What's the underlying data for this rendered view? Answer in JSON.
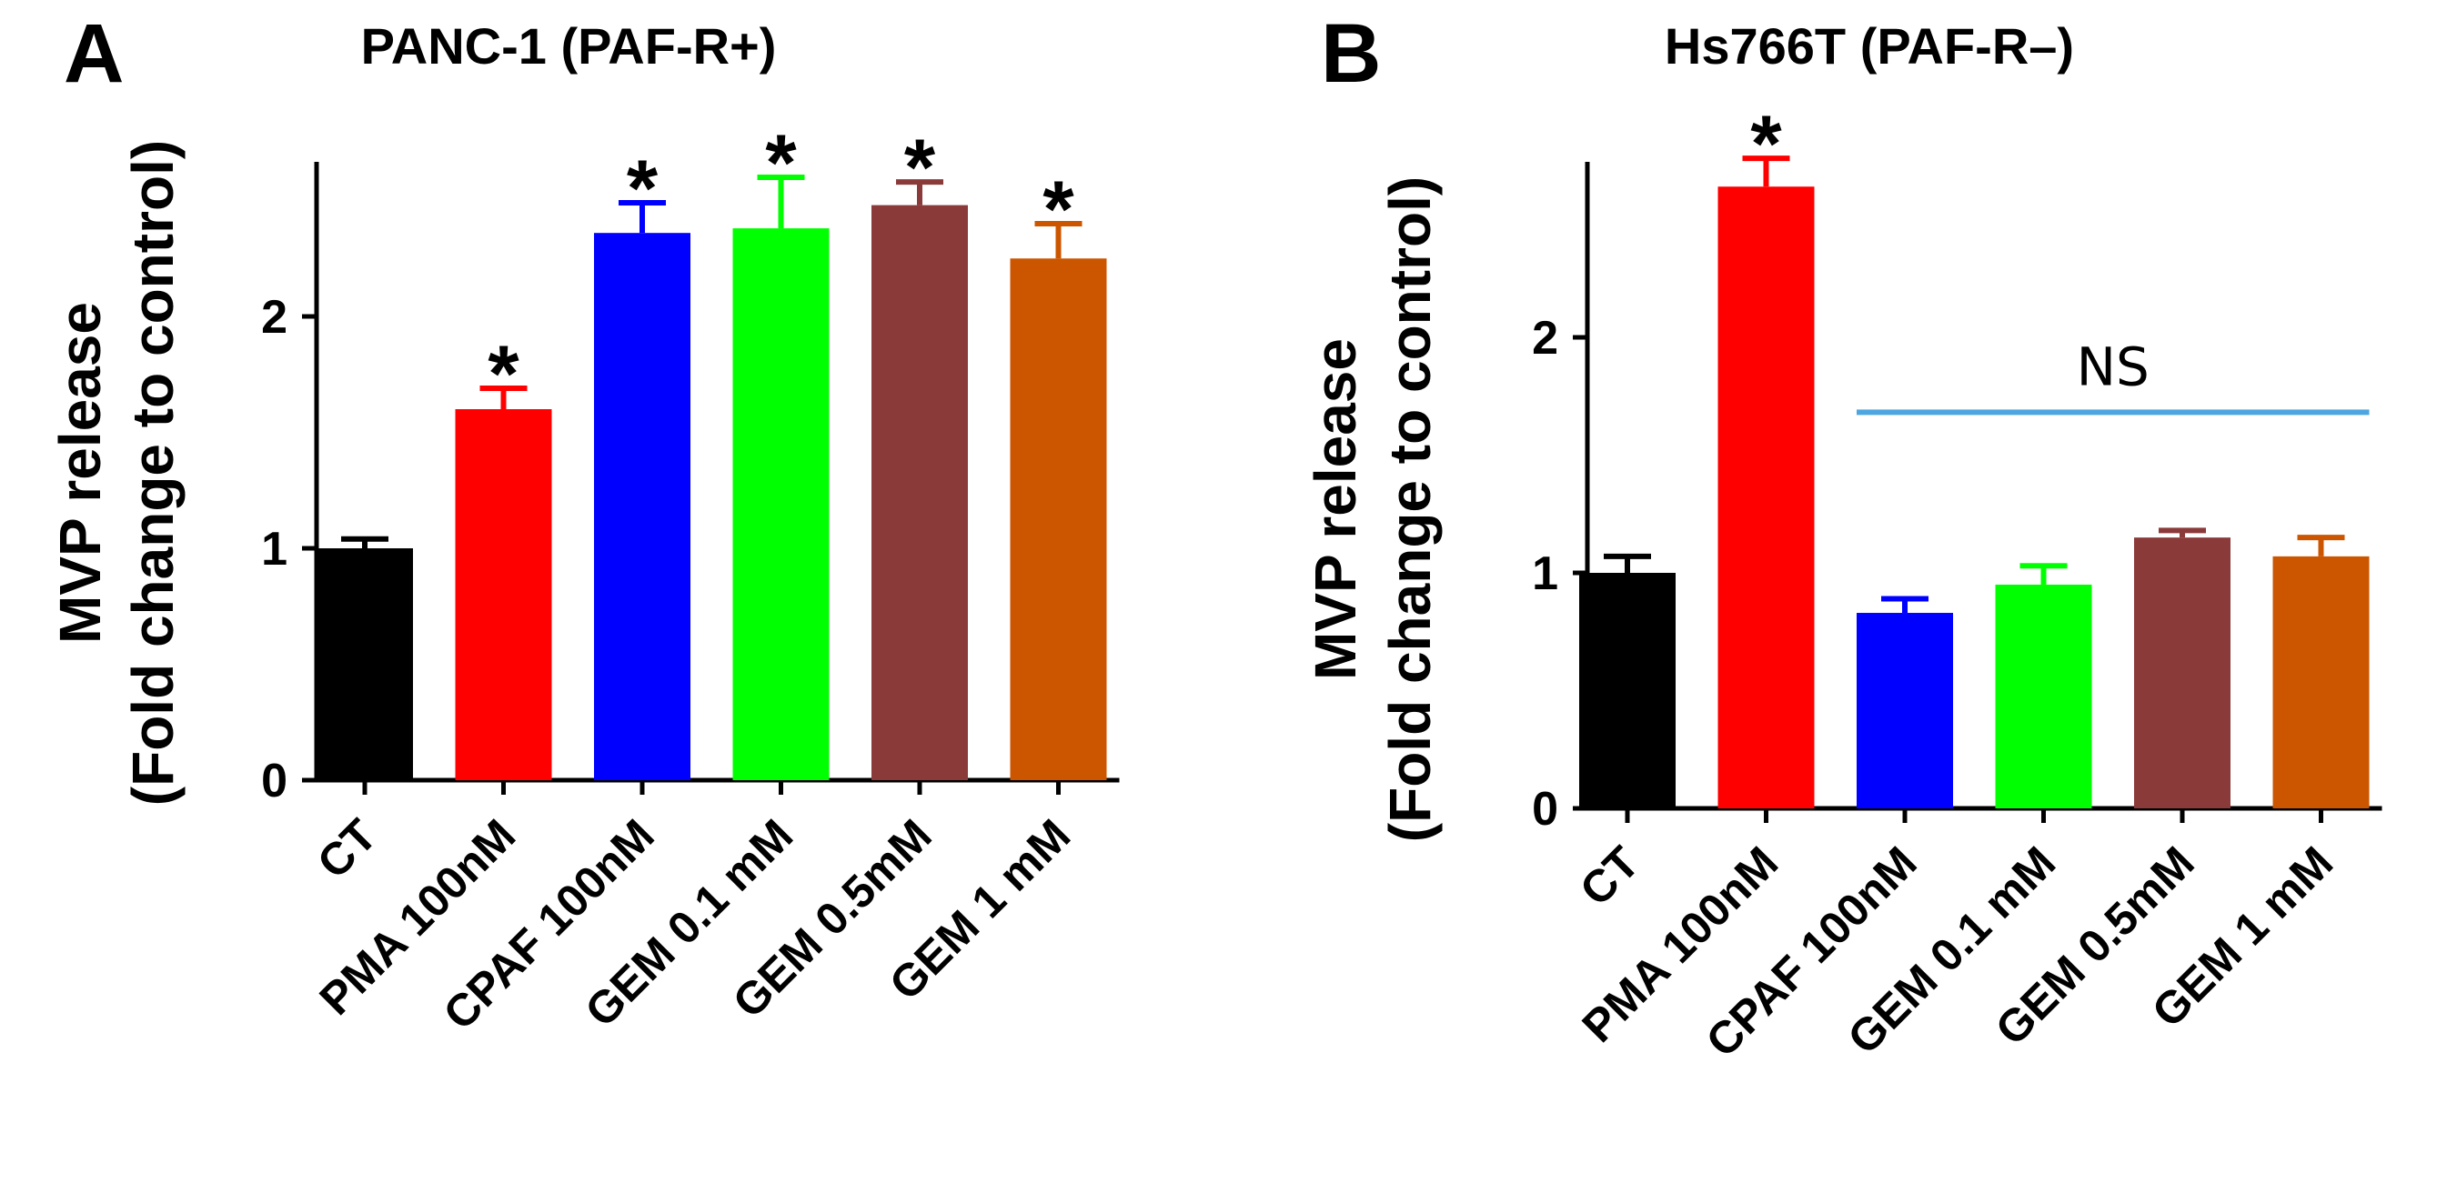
{
  "chart_data": [
    {
      "panel": "A",
      "type": "bar",
      "title": "PANC-1 (PAF-R+)",
      "ylabel_line1": "MVP release",
      "ylabel_line2": "(Fold change to control)",
      "xlabel": "",
      "ylim": [
        0,
        2.65
      ],
      "yticks": [
        0,
        1,
        2
      ],
      "grid": false,
      "categories": [
        "CT",
        "PMA 100nM",
        "CPAF 100nM",
        "GEM 0.1 mM",
        "GEM 0.5mM",
        "GEM 1 mM"
      ],
      "values": [
        1.0,
        1.6,
        2.36,
        2.38,
        2.48,
        2.25
      ],
      "errors": [
        0.04,
        0.09,
        0.13,
        0.22,
        0.1,
        0.15
      ],
      "colors": [
        "#000000",
        "#ff0000",
        "#0000ff",
        "#00ff00",
        "#8b3a3a",
        "#cc5500"
      ],
      "significance": [
        "",
        "*",
        "*",
        "*",
        "*",
        "*"
      ],
      "ns_bracket": null
    },
    {
      "panel": "B",
      "type": "bar",
      "title": "Hs766T (PAF-R–)",
      "ylabel_line1": "MVP release",
      "ylabel_line2": "(Fold change to control)",
      "xlabel": "",
      "ylim": [
        0,
        2.8
      ],
      "yticks": [
        0,
        1,
        2
      ],
      "grid": false,
      "categories": [
        "CT",
        "PMA 100nM",
        "CPAF 100nM",
        "GEM 0.1 mM",
        "GEM 0.5mM",
        "GEM 1 mM"
      ],
      "values": [
        1.0,
        2.64,
        0.83,
        0.95,
        1.15,
        1.07
      ],
      "errors": [
        0.07,
        0.12,
        0.06,
        0.08,
        0.03,
        0.08
      ],
      "colors": [
        "#000000",
        "#ff0000",
        "#0000ff",
        "#00ff00",
        "#8b3a3a",
        "#cc5500"
      ],
      "significance": [
        "",
        "*",
        "",
        "",
        "",
        ""
      ],
      "ns_bracket": {
        "label": "NS",
        "from": 2,
        "to": 5,
        "color": "#4da6e0"
      }
    }
  ]
}
